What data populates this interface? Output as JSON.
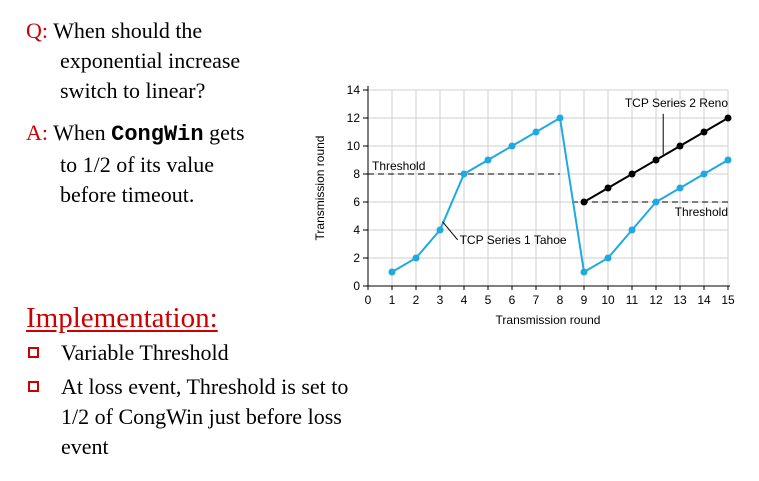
{
  "qa": {
    "q_label": "Q:",
    "q_line1": "When should the",
    "q_line2": "exponential increase",
    "q_line3": "switch to linear?",
    "a_label": "A:",
    "a_pre": "When ",
    "a_code": "CongWin",
    "a_post": " gets",
    "a_line2": "to 1/2 of its value",
    "a_line3": "before timeout."
  },
  "implementation": {
    "title": "Implementation:",
    "bullets": [
      "Variable Threshold",
      "At loss event, Threshold is set to 1/2 of CongWin just before loss event"
    ]
  },
  "chart_data": {
    "type": "line",
    "xlabel": "Transmission round",
    "ylabel": "Transmission round",
    "xlim": [
      0,
      15
    ],
    "ylim": [
      0,
      14
    ],
    "xticks": [
      0,
      1,
      2,
      3,
      4,
      5,
      6,
      7,
      8,
      9,
      10,
      11,
      12,
      13,
      14,
      15
    ],
    "yticks": [
      0,
      2,
      4,
      6,
      8,
      10,
      12,
      14
    ],
    "grid": true,
    "series": [
      {
        "name": "TCP Series 1 Tahoe",
        "color": "#1fa9e1",
        "x": [
          1,
          2,
          3,
          4,
          5,
          6,
          7,
          8,
          9,
          10,
          11,
          12,
          13,
          14,
          15
        ],
        "y": [
          1,
          2,
          4,
          8,
          9,
          10,
          11,
          12,
          1,
          2,
          4,
          6,
          7,
          8,
          9
        ]
      },
      {
        "name": "TCP Series 2 Reno",
        "color": "#000000",
        "x": [
          9,
          10,
          11,
          12,
          13,
          14,
          15
        ],
        "y": [
          6,
          7,
          8,
          9,
          10,
          11,
          12
        ]
      }
    ],
    "thresholds": [
      {
        "label": "Threshold",
        "y": 8,
        "x_range": [
          0,
          8
        ]
      },
      {
        "label": "Threshold",
        "y": 6,
        "x_range": [
          8.5,
          15
        ]
      }
    ]
  }
}
